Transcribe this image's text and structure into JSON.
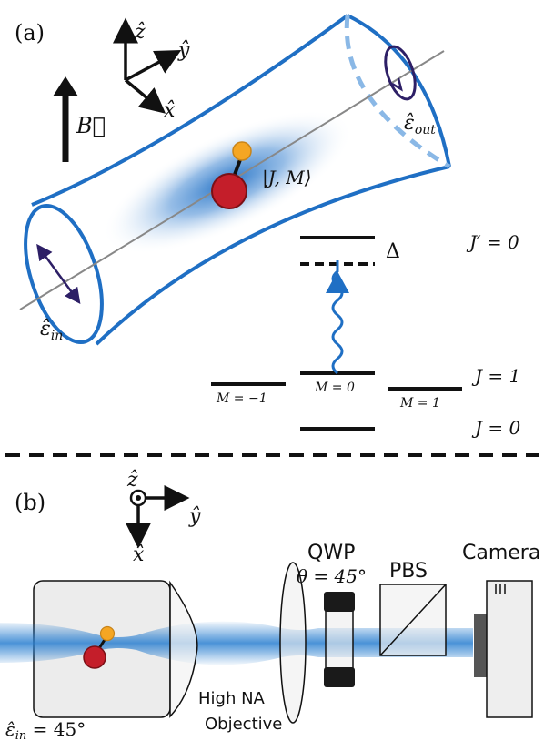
{
  "panel_a": {
    "label": "(a)",
    "axes": {
      "z": "ẑ",
      "y": "ŷ",
      "x": "x̂"
    },
    "field": "B⃗",
    "state": "|J, M⟩",
    "pol_in": {
      "base": "ε̂",
      "sub": "in"
    },
    "pol_out": {
      "base": "ε̂",
      "sub": "out"
    },
    "detuning": "Δ",
    "levels": {
      "excited": "J′ = 0",
      "j1": "J = 1",
      "ground": "J = 0",
      "m_minus": "M = −1",
      "m_zero": "M = 0",
      "m_plus": "M = 1"
    }
  },
  "panel_b": {
    "label": "(b)",
    "axes": {
      "z": "ẑ",
      "y": "ŷ",
      "x": "x̂"
    },
    "pol_in": {
      "base": "ε̂",
      "sub": "in",
      "value": " = 45°"
    },
    "objective_line1": "High NA",
    "objective_line2": "Objective",
    "qwp": "QWP",
    "qwp_angle": "θ = 45°",
    "pbs": "PBS",
    "camera": "Camera"
  },
  "colors": {
    "cavity": "#1f6fc4",
    "beam": "#2a7fd0",
    "atom": "#c41e2a",
    "atom_small": "#f5a623",
    "polarization": "#2d1f66"
  }
}
